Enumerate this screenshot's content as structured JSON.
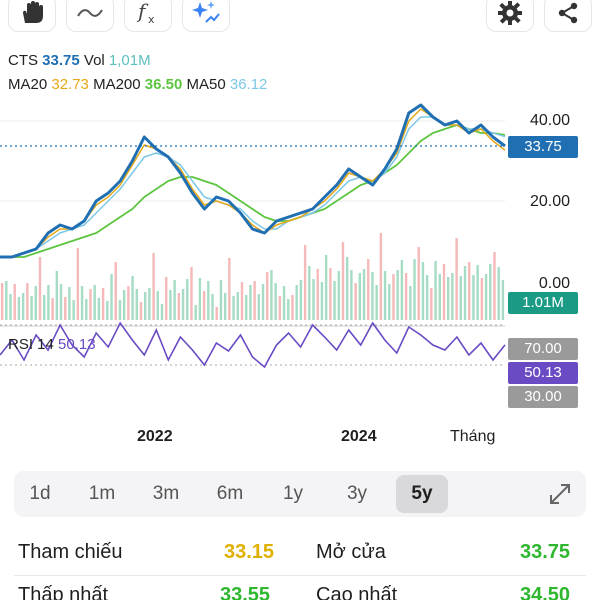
{
  "toolbar": {
    "icons": [
      "hand-icon",
      "wave-icon",
      "function-icon",
      "sparkle-icon",
      "gear-icon",
      "share-icon"
    ]
  },
  "legend": {
    "symbol": "CTS",
    "price": "33.75",
    "vol_label": "Vol",
    "vol": "1,01M",
    "ma20_label": "MA20",
    "ma20": "32.73",
    "ma200_label": "MA200",
    "ma200": "36.50",
    "ma50_label": "MA50",
    "ma50": "36.12"
  },
  "rsi": {
    "label": "RSI 14",
    "value": "50.13",
    "upper": "70.00",
    "lower": "30.00"
  },
  "axis": {
    "y40": "40.00",
    "y20": "20.00",
    "vol0": "0.00",
    "price_tag": "33.75",
    "vol_tag": "1.01M",
    "x_labels": [
      "2022",
      "2024",
      "Tháng"
    ]
  },
  "timeframes": [
    "1d",
    "1m",
    "3m",
    "6m",
    "1y",
    "3y",
    "5y"
  ],
  "active_timeframe": "5y",
  "info": {
    "ref_label": "Tham chiếu",
    "ref_value": "33.15",
    "open_label": "Mở cửa",
    "open_value": "33.75",
    "low_label": "Thấp nhất",
    "low_value": "33.55",
    "high_label": "Cao nhất",
    "high_value": "34.50"
  },
  "colors": {
    "price_line": "#1f6fb2",
    "ma20": "#e6a817",
    "ma50": "#7cc8e8",
    "ma200": "#5cc540",
    "vol_tag": "#1b9a85",
    "rsi": "#6a4bc4",
    "up": "#8fd3b4",
    "down": "#f3a7a7",
    "yellow_value": "#e0b000",
    "green_value": "#2eb82e"
  },
  "chart_data": [
    {
      "type": "line",
      "x_ticks": [
        "2022",
        "2024"
      ],
      "yticks": [
        0,
        20,
        40
      ],
      "ylim": [
        0,
        48
      ],
      "series": [
        {
          "name": "CTS",
          "values": [
            6,
            6,
            7,
            8,
            12,
            14,
            13,
            15,
            20,
            22,
            25,
            30,
            36,
            33,
            31,
            27,
            22,
            18,
            21,
            20,
            17,
            13,
            12,
            15,
            16,
            17,
            18,
            21,
            24,
            28,
            26,
            24,
            28,
            33,
            42,
            44,
            41,
            39,
            40,
            37,
            39,
            36,
            33.75
          ]
        },
        {
          "name": "MA20",
          "values": [
            6,
            6,
            7,
            8,
            11,
            13,
            13,
            15,
            19,
            21,
            24,
            29,
            34,
            33,
            31,
            28,
            23,
            19,
            20,
            19,
            17,
            14,
            12,
            14,
            15,
            16,
            18,
            20,
            23,
            27,
            26,
            25,
            28,
            32,
            40,
            43,
            41,
            39,
            39,
            37,
            38,
            35,
            32.73
          ]
        },
        {
          "name": "MA50",
          "values": [
            6,
            6,
            7,
            8,
            10,
            12,
            13,
            14,
            17,
            20,
            23,
            27,
            31,
            32,
            31,
            29,
            25,
            21,
            20,
            19,
            18,
            15,
            13,
            13,
            15,
            16,
            17,
            19,
            22,
            25,
            26,
            25,
            27,
            31,
            38,
            41,
            41,
            39,
            39,
            38,
            38,
            37,
            36.12
          ]
        },
        {
          "name": "MA200",
          "values": [
            6,
            6,
            6,
            7,
            8,
            9,
            10,
            11,
            12,
            14,
            16,
            18,
            21,
            23,
            25,
            26,
            26,
            25,
            24,
            22,
            20,
            18,
            16,
            15,
            15,
            16,
            17,
            18,
            20,
            22,
            24,
            25,
            27,
            29,
            32,
            35,
            37,
            38,
            39,
            38,
            37,
            37,
            36.5
          ]
        }
      ]
    },
    {
      "type": "bar",
      "name": "Vol",
      "last": "1.01M"
    },
    {
      "type": "line",
      "name": "RSI 14",
      "ylim": [
        0,
        100
      ],
      "levels": [
        30,
        70
      ],
      "values": [
        40,
        55,
        35,
        60,
        45,
        70,
        50,
        38,
        62,
        48,
        72,
        55,
        40,
        65,
        35,
        58,
        45,
        30,
        52,
        44,
        60,
        38,
        28,
        50,
        62,
        48,
        70,
        58,
        45,
        65,
        50,
        72,
        55,
        42,
        68,
        60,
        50,
        45,
        58,
        40,
        52,
        35,
        50.13
      ]
    }
  ]
}
